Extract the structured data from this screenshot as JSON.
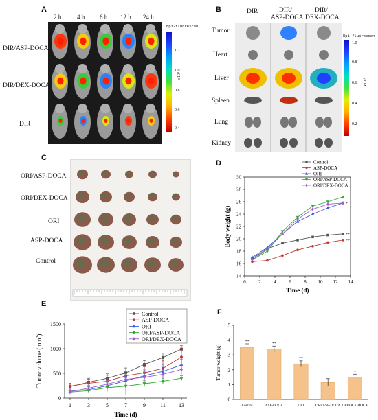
{
  "panels": {
    "A": "A",
    "B": "B",
    "C": "C",
    "D": "D",
    "E": "E",
    "F": "F"
  },
  "panel_a": {
    "times": [
      "2 h",
      "4 h",
      "6 h",
      "12 h",
      "24 h"
    ],
    "rows": [
      "DIR/ASP-DOCA",
      "DIR/DEX-DOCA",
      "DIR"
    ],
    "scale_title": "Epi-fluorescen",
    "scale_ticks": [
      "1.2",
      "1.0",
      "0.8",
      "0.6",
      "0.4"
    ],
    "scale_unit": "x10⁹"
  },
  "panel_b": {
    "cols": [
      "DIR",
      "DIR/\nASP-DOCA",
      "DIR/\nDEX-DOCA"
    ],
    "col1": "DIR",
    "col2a": "DIR/",
    "col2b": "ASP-DOCA",
    "col3a": "DIR/",
    "col3b": "DEX-DOCA",
    "rows": [
      "Tumor",
      "Heart",
      "Liver",
      "Spleen",
      "Lung",
      "Kidney"
    ],
    "scale_title": "Epi-fluorescen",
    "scale_ticks": [
      "1.0",
      "0.8",
      "0.6",
      "0.4",
      "0.2"
    ],
    "scale_unit": "x10¹⁰"
  },
  "panel_c": {
    "rows": [
      "ORI/ASP-DOCA",
      "ORI/DEX-DOCA",
      "ORI",
      "ASP-DOCA",
      "Control"
    ]
  },
  "colors": {
    "control": "#555555",
    "asp": "#c0392b",
    "ori": "#3a5bd9",
    "ori_asp": "#2eaa2e",
    "ori_dex": "#a55cc9",
    "bar": "#f4c28a",
    "bar_edge": "#d9a060"
  },
  "chart_data": [
    {
      "id": "D",
      "type": "line",
      "xlabel": "Time (d)",
      "ylabel": "Body weight (g)",
      "xlim": [
        0,
        14
      ],
      "ylim": [
        14,
        30
      ],
      "xticks": [
        0,
        2,
        4,
        6,
        8,
        10,
        12,
        14
      ],
      "yticks": [
        14,
        16,
        18,
        20,
        22,
        24,
        26,
        28,
        30
      ],
      "x": [
        1,
        3,
        5,
        7,
        9,
        11,
        13
      ],
      "series": [
        {
          "name": "Control",
          "key": "control",
          "marker": "square",
          "values": [
            16.8,
            18.4,
            19.3,
            19.8,
            20.3,
            20.6,
            20.8
          ]
        },
        {
          "name": "ASP-DOCA",
          "key": "asp",
          "marker": "circle",
          "values": [
            16.3,
            16.5,
            17.3,
            18.2,
            18.8,
            19.4,
            19.8
          ]
        },
        {
          "name": "ORI",
          "key": "ori",
          "marker": "triangle",
          "values": [
            17.0,
            18.6,
            20.8,
            22.8,
            24.0,
            25.0,
            25.8
          ]
        },
        {
          "name": "ORI/ASP-DOCA",
          "key": "ori_asp",
          "marker": "triangle-down",
          "values": [
            16.6,
            18.0,
            21.2,
            23.5,
            25.3,
            26.0,
            26.8
          ]
        },
        {
          "name": "ORI/DEX-DOCA",
          "key": "ori_dex",
          "marker": "diamond",
          "values": [
            16.6,
            18.3,
            20.8,
            23.2,
            24.8,
            25.6,
            25.8
          ]
        }
      ],
      "annotations": [
        {
          "text": "*",
          "x": 13,
          "y": 25.8
        },
        {
          "text": "**",
          "x": 13,
          "y": 20.8
        },
        {
          "text": "**",
          "x": 13,
          "y": 19.8
        }
      ]
    },
    {
      "id": "E",
      "type": "line",
      "xlabel": "Time (d)",
      "ylabel": "Tumor volume (mm",
      "ylabel_sup": "3",
      "ylabel_close": ")",
      "xcategories": [
        "1",
        "3",
        "5",
        "7",
        "9",
        "11",
        "13"
      ],
      "ylim": [
        0,
        1500
      ],
      "yticks": [
        0,
        500,
        1000,
        1500
      ],
      "series": [
        {
          "name": "Control",
          "key": "control",
          "marker": "square",
          "values": [
            230,
            320,
            400,
            510,
            680,
            820,
            990
          ],
          "err": [
            60,
            80,
            90,
            100,
            80,
            90,
            70
          ]
        },
        {
          "name": "ASP-DOCA",
          "key": "asp",
          "marker": "circle",
          "values": [
            240,
            300,
            340,
            450,
            510,
            600,
            830
          ],
          "err": [
            60,
            80,
            120,
            100,
            120,
            160,
            180
          ]
        },
        {
          "name": "ORI",
          "key": "ori",
          "marker": "triangle",
          "values": [
            140,
            170,
            250,
            350,
            450,
            540,
            670
          ],
          "err": [
            40,
            60,
            70,
            90,
            120,
            140,
            120
          ]
        },
        {
          "name": "ORI/ASP-DOCA",
          "key": "ori_asp",
          "marker": "triangle-down",
          "values": [
            120,
            150,
            210,
            240,
            290,
            340,
            400
          ],
          "err": [
            40,
            50,
            80,
            170,
            60,
            60,
            50
          ]
        },
        {
          "name": "ORI/DEX-DOCA",
          "key": "ori_dex",
          "marker": "diamond",
          "values": [
            130,
            200,
            280,
            380,
            420,
            480,
            580
          ],
          "err": [
            50,
            60,
            70,
            120,
            110,
            90,
            100
          ]
        }
      ]
    },
    {
      "id": "F",
      "type": "bar",
      "ylabel": "Tumor weight (g)",
      "categories": [
        "Control",
        "ASP-DOCA",
        "ORI",
        "ORI/ASP-DOCA",
        "ORI/DEX-DOCA"
      ],
      "values": [
        3.5,
        3.4,
        2.4,
        1.15,
        1.5
      ],
      "err": [
        0.25,
        0.2,
        0.2,
        0.25,
        0.2
      ],
      "sig": [
        "**",
        "**",
        "**",
        "",
        "*"
      ],
      "ylim": [
        0,
        5
      ],
      "yticks": [
        0,
        1,
        2,
        3,
        4,
        5
      ]
    }
  ]
}
